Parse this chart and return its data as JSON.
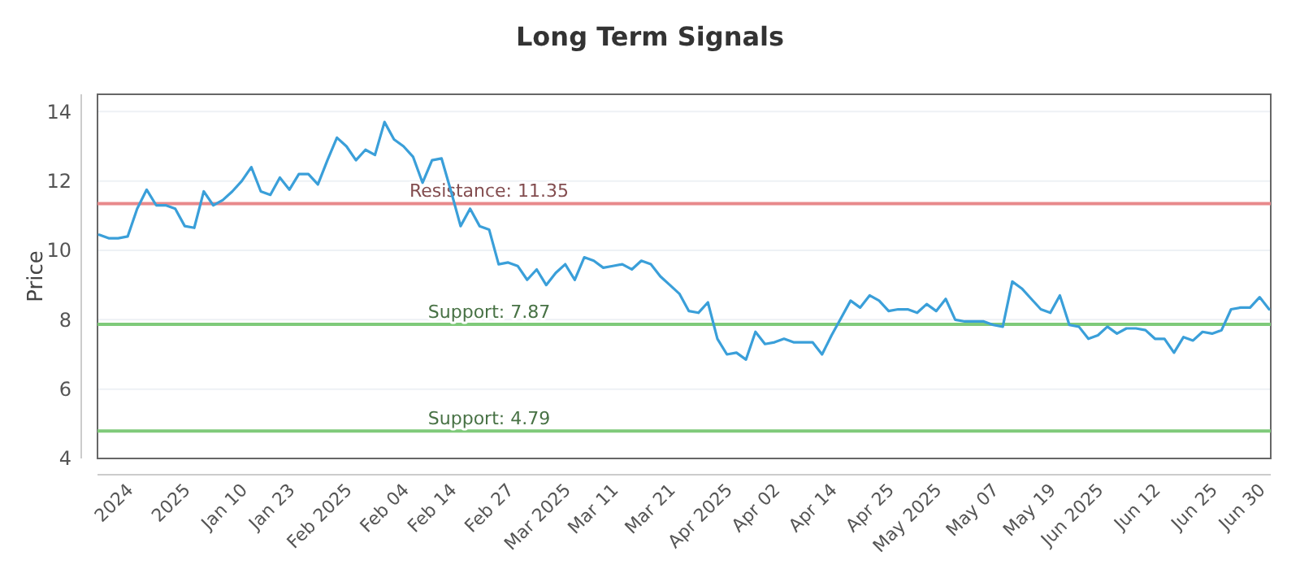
{
  "chart_data": {
    "type": "line",
    "title": "Long Term Signals",
    "ylabel": "Price",
    "categories": [
      null,
      null,
      null,
      "2024",
      null,
      null,
      null,
      null,
      null,
      "2025",
      null,
      null,
      null,
      null,
      null,
      "Jan 10",
      null,
      null,
      null,
      null,
      "Jan 23",
      null,
      null,
      null,
      null,
      null,
      "Feb 2025",
      null,
      null,
      null,
      null,
      null,
      "Feb 04",
      null,
      null,
      null,
      null,
      "Feb 14",
      null,
      null,
      null,
      null,
      null,
      "Feb 27",
      null,
      null,
      null,
      null,
      null,
      "Mar 2025",
      null,
      null,
      null,
      null,
      "Mar 11",
      null,
      null,
      null,
      null,
      null,
      "Mar 21",
      null,
      null,
      null,
      null,
      null,
      "Apr 2025",
      null,
      null,
      null,
      null,
      "Apr 02",
      null,
      null,
      null,
      null,
      null,
      "Apr 14",
      null,
      null,
      null,
      null,
      null,
      "Apr 25",
      null,
      null,
      null,
      null,
      "May 2025",
      null,
      null,
      null,
      null,
      null,
      "May 07",
      null,
      null,
      null,
      null,
      null,
      "May 19",
      null,
      null,
      null,
      null,
      "Jun 2025",
      null,
      null,
      null,
      null,
      null,
      "Jun 12",
      null,
      null,
      null,
      null,
      null,
      "Jun 25",
      null,
      null,
      null,
      null,
      "Jun 30",
      null
    ],
    "series": [
      {
        "color": "#3a9fd9",
        "values": [
          10.45,
          10.35,
          10.35,
          10.4,
          11.2,
          11.75,
          11.3,
          11.3,
          11.2,
          10.7,
          10.65,
          11.7,
          11.3,
          11.45,
          11.7,
          12.0,
          12.4,
          11.7,
          11.6,
          12.1,
          11.75,
          12.2,
          12.2,
          11.9,
          12.6,
          13.25,
          13.0,
          12.6,
          12.9,
          12.75,
          13.7,
          13.2,
          13.0,
          12.7,
          11.95,
          12.6,
          12.65,
          11.7,
          10.7,
          11.2,
          10.7,
          10.6,
          9.6,
          9.65,
          9.55,
          9.15,
          9.45,
          9.0,
          9.35,
          9.6,
          9.15,
          9.8,
          9.7,
          9.5,
          9.55,
          9.6,
          9.45,
          9.7,
          9.6,
          9.25,
          9.0,
          8.75,
          8.25,
          8.2,
          8.5,
          7.45,
          7.0,
          7.05,
          6.85,
          7.65,
          7.3,
          7.35,
          7.45,
          7.35,
          7.35,
          7.35,
          7.0,
          7.55,
          8.05,
          8.55,
          8.35,
          8.7,
          8.55,
          8.25,
          8.3,
          8.3,
          8.2,
          8.45,
          8.25,
          8.6,
          8.0,
          7.95,
          7.95,
          7.95,
          7.85,
          7.8,
          9.1,
          8.9,
          8.6,
          8.3,
          8.2,
          8.7,
          7.85,
          7.8,
          7.45,
          7.55,
          7.8,
          7.6,
          7.75,
          7.75,
          7.7,
          7.45,
          7.45,
          7.05,
          7.5,
          7.4,
          7.65,
          7.6,
          7.7,
          8.3,
          8.35,
          8.35,
          8.65,
          8.3
        ]
      }
    ],
    "ylim": [
      4,
      14.5
    ],
    "yticks": [
      4,
      6,
      8,
      10,
      12,
      14
    ],
    "grid": "y",
    "ref_lines": [
      {
        "axis": "y",
        "value": 11.35,
        "label": "Resistance: 11.35",
        "color": "#e8898b"
      },
      {
        "axis": "y",
        "value": 7.87,
        "label": "Support: 7.87",
        "color": "#7fca7a"
      },
      {
        "axis": "y",
        "value": 4.79,
        "label": "Support: 4.79",
        "color": "#7fca7a"
      }
    ]
  }
}
